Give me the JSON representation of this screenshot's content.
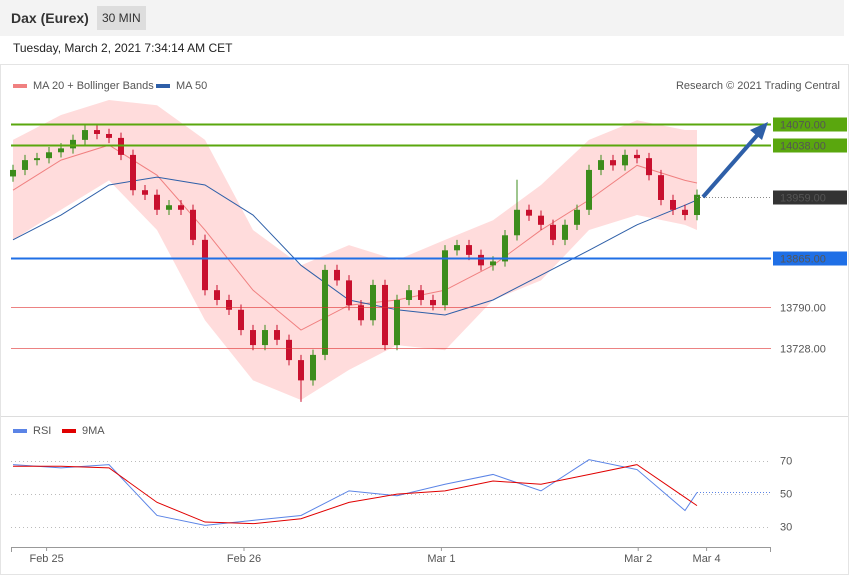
{
  "header": {
    "instrument": "Dax (Eurex)",
    "timeframe": "30 MIN",
    "timestamp": "Tuesday, March 2, 2021 7:34:14 AM CET"
  },
  "chart_data": [
    {
      "type": "candlestick",
      "source": "Research © 2021 Trading Central",
      "candles": {
        "open": [
          13990,
          14000,
          14015,
          14018,
          14027,
          14033,
          14046,
          14061,
          14055,
          14049,
          14023,
          13969,
          13962,
          13939,
          13946,
          13939,
          13893,
          13816,
          13801,
          13786,
          13755,
          13732,
          13755,
          13740,
          13709,
          13678,
          13717,
          13847,
          13831,
          13793,
          13770,
          13824,
          13732,
          13801,
          13816,
          13801,
          13793,
          13877,
          13885,
          13870,
          13854,
          13860,
          13900,
          13939,
          13930,
          13916,
          13893,
          13916,
          13939,
          14000,
          14015,
          14007,
          14023,
          14018,
          13992,
          13954,
          13939,
          13931
        ],
        "high": [
          14008,
          14023,
          14026,
          14035,
          14041,
          14054,
          14069,
          14069,
          14063,
          14057,
          14031,
          13977,
          13970,
          13954,
          13954,
          13947,
          13901,
          13824,
          13809,
          13794,
          13763,
          13763,
          13763,
          13748,
          13717,
          13725,
          13855,
          13855,
          13839,
          13801,
          13832,
          13832,
          13809,
          13824,
          13824,
          13809,
          13885,
          13893,
          13893,
          13878,
          13868,
          13908,
          13985,
          13947,
          13938,
          13924,
          13924,
          13947,
          14008,
          14023,
          14023,
          14031,
          14031,
          14026,
          14000,
          13962,
          13947,
          13970
        ],
        "low": [
          13982,
          13992,
          14007,
          14010,
          14019,
          14025,
          14038,
          14047,
          14041,
          14015,
          13961,
          13954,
          13931,
          13931,
          13931,
          13885,
          13808,
          13793,
          13778,
          13747,
          13724,
          13724,
          13732,
          13701,
          13645,
          13670,
          13709,
          13823,
          13785,
          13762,
          13762,
          13724,
          13724,
          13793,
          13793,
          13785,
          13785,
          13869,
          13862,
          13846,
          13846,
          13852,
          13892,
          13922,
          13908,
          13885,
          13885,
          13908,
          13931,
          13992,
          13999,
          13999,
          14010,
          13984,
          13946,
          13931,
          13923,
          13923
        ],
        "close": [
          14000,
          14015,
          14018,
          14027,
          14033,
          14046,
          14061,
          14055,
          14049,
          14023,
          13969,
          13962,
          13939,
          13946,
          13939,
          13893,
          13816,
          13801,
          13786,
          13755,
          13732,
          13755,
          13740,
          13709,
          13678,
          13717,
          13847,
          13831,
          13793,
          13770,
          13824,
          13732,
          13801,
          13816,
          13801,
          13793,
          13877,
          13885,
          13870,
          13854,
          13860,
          13900,
          13939,
          13930,
          13916,
          13893,
          13916,
          13939,
          14000,
          14015,
          14007,
          14023,
          14018,
          13992,
          13954,
          13939,
          13931,
          13962
        ],
        "up_color": "#3d8c1c",
        "down_color": "#c8102e"
      },
      "band": {
        "name": "MA 20 + Bollinger Bands",
        "color": "#f08080",
        "fill": "#ffdcdc",
        "x": [
          0,
          4,
          8,
          12,
          16,
          20,
          24,
          28,
          32,
          36,
          40,
          44,
          48,
          52,
          56,
          57
        ],
        "middle": [
          13969,
          14015,
          14038,
          13992,
          13908,
          13816,
          13755,
          13793,
          13801,
          13816,
          13854,
          13908,
          13954,
          14007,
          13984,
          13980
        ],
        "upper": [
          14046,
          14084,
          14107,
          14099,
          14046,
          13908,
          13854,
          13885,
          13862,
          13893,
          13923,
          13977,
          14046,
          14076,
          14061,
          14061
        ],
        "lower": [
          13893,
          13939,
          13984,
          13908,
          13770,
          13678,
          13648,
          13694,
          13732,
          13724,
          13801,
          13831,
          13908,
          13931,
          13916,
          13908
        ]
      },
      "series": [
        {
          "name": "MA 50",
          "color": "#2e5fa8",
          "x": [
            0,
            4,
            8,
            12,
            16,
            20,
            24,
            28,
            32,
            36,
            40,
            44,
            48,
            52,
            56,
            57
          ],
          "values": [
            13893,
            13931,
            13977,
            13989,
            13977,
            13931,
            13854,
            13801,
            13786,
            13778,
            13801,
            13839,
            13877,
            13916,
            13946,
            13954
          ]
        }
      ],
      "levels": [
        {
          "value": 14070,
          "label": "14070.00",
          "color": "#5aa70e",
          "style": "box"
        },
        {
          "value": 14038,
          "label": "14038.00",
          "color": "#5aa70e",
          "style": "box"
        },
        {
          "value": 13959,
          "label": "13959.00",
          "color": "#333333",
          "style": "current"
        },
        {
          "value": 13865,
          "label": "13865.00",
          "color": "#1f6fe6",
          "style": "box"
        },
        {
          "value": 13790,
          "label": "13790.00",
          "color": "#e03030",
          "style": "text"
        },
        {
          "value": 13728,
          "label": "13728.00",
          "color": "#e03030",
          "style": "text"
        }
      ],
      "ylim": [
        13625,
        14107
      ],
      "xticks": [
        {
          "value": 2.8,
          "label": "Feb 25"
        },
        {
          "value": 19.25,
          "label": "Feb 26"
        },
        {
          "value": 35.7,
          "label": "Mar 1"
        },
        {
          "value": 52.1,
          "label": "Mar 2"
        },
        {
          "value": 57.8,
          "label": "Mar 4"
        }
      ]
    },
    {
      "type": "line",
      "series": [
        {
          "name": "RSI",
          "color": "#5b84e6",
          "x": [
            0,
            4,
            8,
            12,
            16,
            20,
            24,
            28,
            32,
            36,
            40,
            44,
            48,
            52,
            56,
            57
          ],
          "values": [
            68,
            66,
            68,
            37,
            31,
            34,
            37,
            52,
            49,
            56,
            62,
            52,
            71,
            65,
            40,
            51
          ]
        },
        {
          "name": "9MA",
          "color": "#e00000",
          "x": [
            0,
            4,
            8,
            12,
            16,
            20,
            24,
            28,
            32,
            36,
            40,
            44,
            48,
            52,
            56,
            57
          ],
          "values": [
            67,
            67,
            66,
            45,
            33,
            32,
            35,
            45,
            50,
            52,
            58,
            56,
            62,
            68,
            48,
            43
          ]
        }
      ],
      "ylim": [
        19,
        83
      ],
      "yticks": [
        30,
        50,
        70
      ],
      "grid": true
    }
  ]
}
